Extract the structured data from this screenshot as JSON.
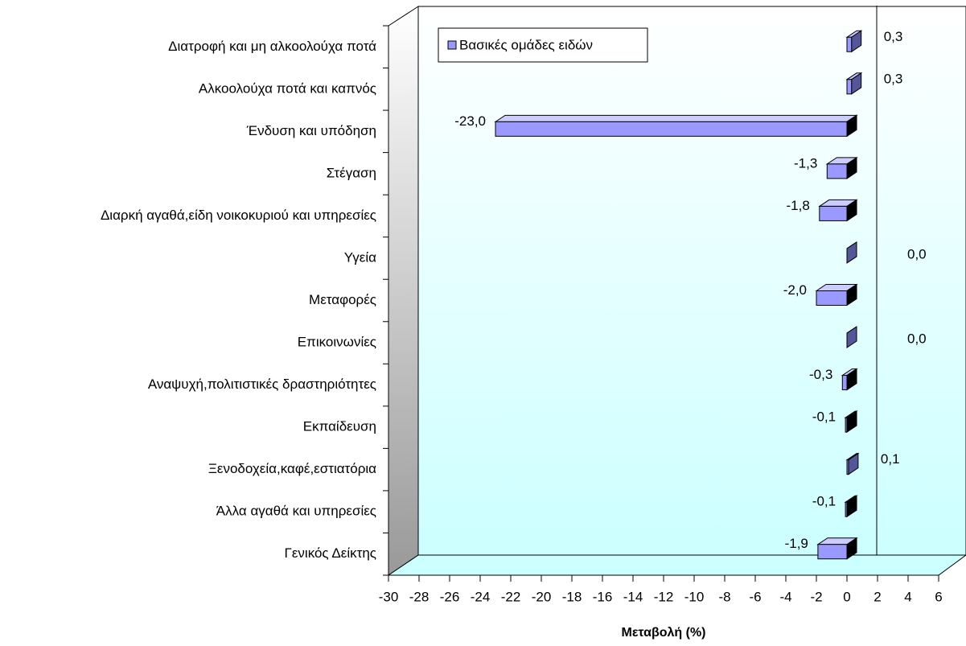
{
  "chart_data": {
    "type": "bar",
    "orientation": "horizontal",
    "categories": [
      "Διατροφή και μη αλκοολούχα ποτά",
      "Αλκοολούχα ποτά και καπνός",
      "Ένδυση και υπόδηση",
      "Στέγαση",
      "Διαρκή αγαθά,είδη νοικοκυριού και υπηρεσίες",
      "Υγεία",
      "Μεταφορές",
      "Επικοινωνίες",
      "Αναψυχή,πολιτιστικές δραστηριότητες",
      "Εκπαίδευση",
      "Ξενοδοχεία,καφέ,εστιατόρια",
      "Άλλα αγαθά και υπηρεσίες",
      "Γενικός Δείκτης"
    ],
    "series": [
      {
        "name": "Βασικές ομάδες ειδών",
        "color": "#9999ff",
        "values": [
          0.3,
          0.3,
          -23.0,
          -1.3,
          -1.8,
          0.0,
          -2.0,
          0.0,
          -0.3,
          -0.1,
          0.1,
          -0.1,
          -1.9
        ],
        "value_labels": [
          "0,3",
          "0,3",
          "-23,0",
          "-1,3",
          "-1,8",
          "0,0",
          "-2,0",
          "0,0",
          "-0,3",
          "-0,1",
          "0,1",
          "-0,1",
          "-1,9"
        ]
      }
    ],
    "xlabel": "Μεταβολή (%)",
    "xlim": [
      -30,
      6
    ],
    "xticks": [
      -30,
      -28,
      -26,
      -24,
      -22,
      -20,
      -18,
      -16,
      -14,
      -12,
      -10,
      -8,
      -6,
      -4,
      -2,
      0,
      2,
      4,
      6
    ],
    "legend": "top-left"
  }
}
